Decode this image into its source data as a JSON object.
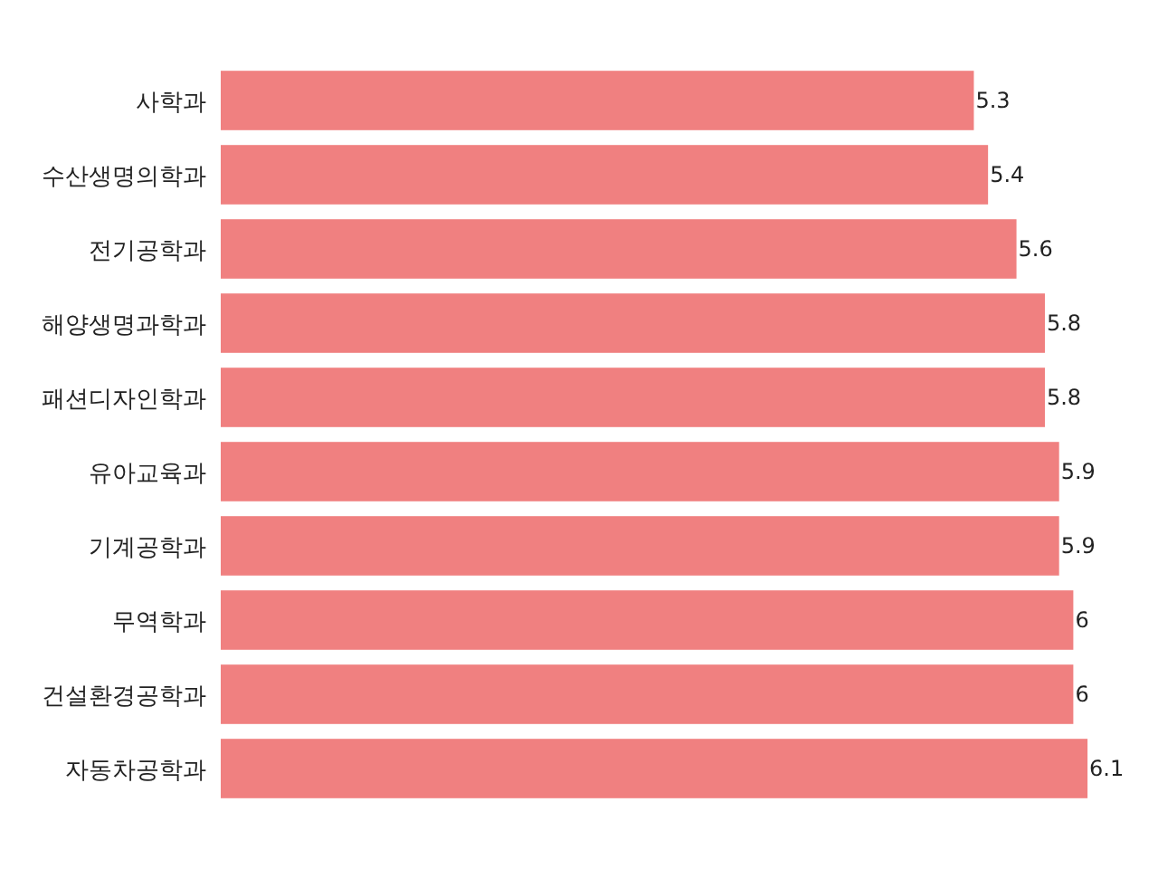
{
  "chart_data": {
    "type": "bar",
    "orientation": "horizontal",
    "categories": [
      "사학과",
      "수산생명의학과",
      "전기공학과",
      "해양생명과학과",
      "패션디자인학과",
      "유아교육과",
      "기계공학과",
      "무역학과",
      "건설환경공학과",
      "자동차공학과"
    ],
    "values": [
      5.3,
      5.4,
      5.6,
      5.8,
      5.8,
      5.9,
      5.9,
      6,
      6,
      6.1
    ],
    "color": "#f08080",
    "data_labels": true
  }
}
